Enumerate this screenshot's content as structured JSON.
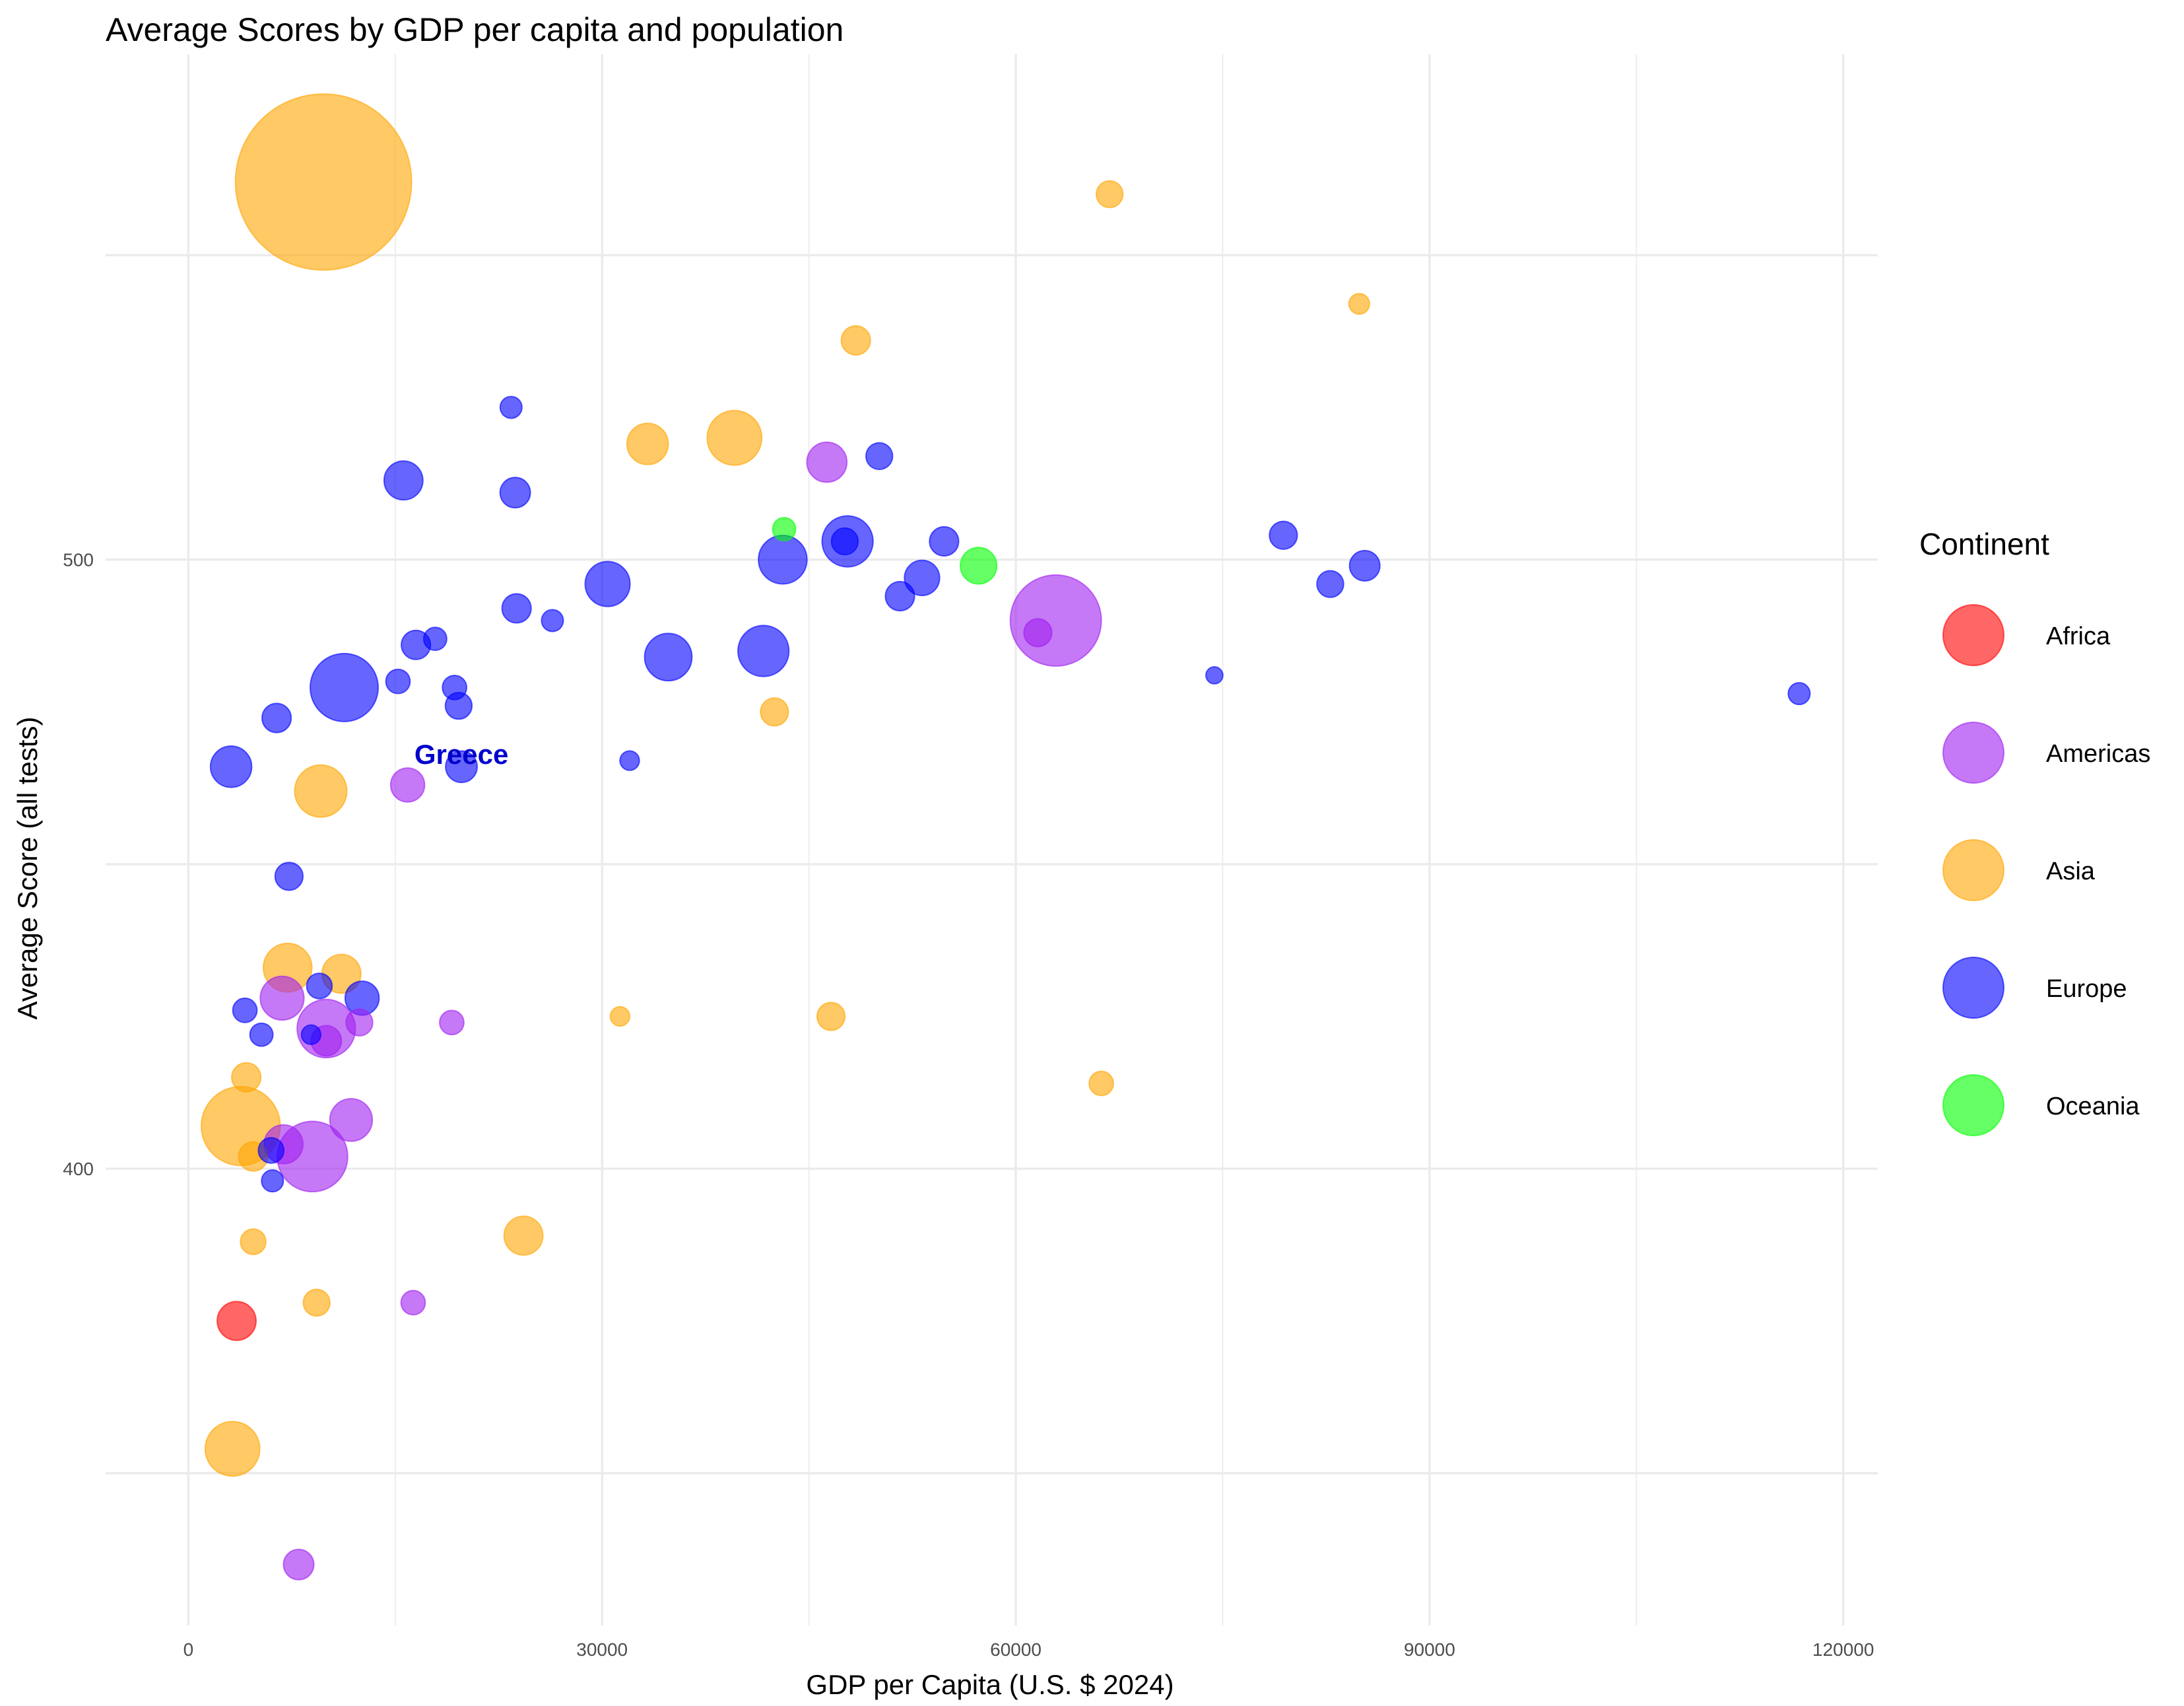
{
  "chart_data": {
    "type": "scatter",
    "title": "Average Scores by GDP per capita and population",
    "xlabel": "GDP per Capita (U.S. $ 2024)",
    "ylabel": "Average Score (all tests)",
    "xlim": [
      -6000,
      122500
    ],
    "ylim": [
      325,
      583
    ],
    "x_ticks": [
      0,
      30000,
      60000,
      90000,
      120000
    ],
    "y_ticks": [
      400,
      500
    ],
    "y_minor_ticks": [
      350,
      450,
      550
    ],
    "grid": true,
    "legend": {
      "title": "Continent",
      "position": "right",
      "entries": [
        {
          "name": "Africa",
          "color": "#ff0000"
        },
        {
          "name": "Americas",
          "color": "#a020f0"
        },
        {
          "name": "Asia",
          "color": "#ffa500"
        },
        {
          "name": "Europe",
          "color": "#0000ff"
        },
        {
          "name": "Oceania",
          "color": "#00ff00"
        }
      ]
    },
    "size_encoding": "population",
    "annotations": [
      {
        "text": "Greece",
        "x": 19800,
        "y": 468,
        "color": "#0000cd"
      }
    ],
    "series": [
      {
        "name": "Africa",
        "color": "#ff0000",
        "points": [
          {
            "x": 3500,
            "y": 375,
            "size": 3.2
          }
        ]
      },
      {
        "name": "Americas",
        "color": "#a020f0",
        "points": [
          {
            "x": 8000,
            "y": 335,
            "size": 2.5
          },
          {
            "x": 16300,
            "y": 378,
            "size": 2.0
          },
          {
            "x": 9000,
            "y": 402,
            "size": 5.8
          },
          {
            "x": 6900,
            "y": 404,
            "size": 3.2
          },
          {
            "x": 11800,
            "y": 408,
            "size": 3.5
          },
          {
            "x": 10000,
            "y": 423,
            "size": 4.8
          },
          {
            "x": 12400,
            "y": 424,
            "size": 2.2
          },
          {
            "x": 6800,
            "y": 428,
            "size": 3.6
          },
          {
            "x": 10000,
            "y": 421,
            "size": 2.5
          },
          {
            "x": 19100,
            "y": 424,
            "size": 2.0
          },
          {
            "x": 15900,
            "y": 463,
            "size": 2.8
          },
          {
            "x": 61600,
            "y": 488,
            "size": 2.3
          },
          {
            "x": 62900,
            "y": 490,
            "size": 7.5
          },
          {
            "x": 46300,
            "y": 516,
            "size": 3.3
          }
        ]
      },
      {
        "name": "Asia",
        "color": "#ffa500",
        "points": [
          {
            "x": 9800,
            "y": 562,
            "size": 14.5
          },
          {
            "x": 66800,
            "y": 560,
            "size": 2.2
          },
          {
            "x": 84900,
            "y": 542,
            "size": 1.7
          },
          {
            "x": 48400,
            "y": 536,
            "size": 2.4
          },
          {
            "x": 33300,
            "y": 519,
            "size": 3.4
          },
          {
            "x": 39600,
            "y": 520,
            "size": 4.5
          },
          {
            "x": 42500,
            "y": 475,
            "size": 2.3
          },
          {
            "x": 9600,
            "y": 462,
            "size": 4.3
          },
          {
            "x": 7200,
            "y": 433,
            "size": 4.0
          },
          {
            "x": 11100,
            "y": 432,
            "size": 3.2
          },
          {
            "x": 31300,
            "y": 425,
            "size": 1.6
          },
          {
            "x": 46600,
            "y": 425,
            "size": 2.3
          },
          {
            "x": 66200,
            "y": 414,
            "size": 2.0
          },
          {
            "x": 4200,
            "y": 415,
            "size": 2.4
          },
          {
            "x": 3800,
            "y": 407,
            "size": 6.5
          },
          {
            "x": 4700,
            "y": 402,
            "size": 2.4
          },
          {
            "x": 4700,
            "y": 388,
            "size": 2.1
          },
          {
            "x": 24300,
            "y": 389,
            "size": 3.2
          },
          {
            "x": 9300,
            "y": 378,
            "size": 2.2
          },
          {
            "x": 3200,
            "y": 354,
            "size": 4.5
          }
        ]
      },
      {
        "name": "Europe",
        "color": "#0000ff",
        "points": [
          {
            "x": 23400,
            "y": 525,
            "size": 1.8
          },
          {
            "x": 15600,
            "y": 513,
            "size": 3.2
          },
          {
            "x": 23700,
            "y": 511,
            "size": 2.5
          },
          {
            "x": 50100,
            "y": 517,
            "size": 2.2
          },
          {
            "x": 79400,
            "y": 504,
            "size": 2.3
          },
          {
            "x": 47800,
            "y": 503,
            "size": 4.2
          },
          {
            "x": 47600,
            "y": 503,
            "size": 2.2
          },
          {
            "x": 54800,
            "y": 503,
            "size": 2.4
          },
          {
            "x": 43100,
            "y": 500,
            "size": 4.0
          },
          {
            "x": 85300,
            "y": 499,
            "size": 2.5
          },
          {
            "x": 30400,
            "y": 496,
            "size": 3.7
          },
          {
            "x": 53200,
            "y": 497,
            "size": 2.9
          },
          {
            "x": 51600,
            "y": 494,
            "size": 2.4
          },
          {
            "x": 82800,
            "y": 496,
            "size": 2.2
          },
          {
            "x": 23800,
            "y": 492,
            "size": 2.4
          },
          {
            "x": 26400,
            "y": 490,
            "size": 1.8
          },
          {
            "x": 16500,
            "y": 486,
            "size": 2.4
          },
          {
            "x": 17900,
            "y": 487,
            "size": 1.9
          },
          {
            "x": 34800,
            "y": 484,
            "size": 3.9
          },
          {
            "x": 41700,
            "y": 485,
            "size": 4.2
          },
          {
            "x": 11300,
            "y": 479,
            "size": 5.6
          },
          {
            "x": 15200,
            "y": 480,
            "size": 2.0
          },
          {
            "x": 19300,
            "y": 479,
            "size": 2.0
          },
          {
            "x": 19600,
            "y": 476,
            "size": 2.2
          },
          {
            "x": 74400,
            "y": 481,
            "size": 1.4
          },
          {
            "x": 116800,
            "y": 478,
            "size": 1.8
          },
          {
            "x": 6400,
            "y": 474,
            "size": 2.4
          },
          {
            "x": 3100,
            "y": 466,
            "size": 3.4
          },
          {
            "x": 19800,
            "y": 466,
            "size": 2.6
          },
          {
            "x": 32000,
            "y": 467,
            "size": 1.6
          },
          {
            "x": 7300,
            "y": 448,
            "size": 2.3
          },
          {
            "x": 9500,
            "y": 430,
            "size": 2.1
          },
          {
            "x": 12600,
            "y": 428,
            "size": 2.8
          },
          {
            "x": 4100,
            "y": 426,
            "size": 2.0
          },
          {
            "x": 5300,
            "y": 422,
            "size": 1.9
          },
          {
            "x": 8900,
            "y": 422,
            "size": 1.6
          },
          {
            "x": 6000,
            "y": 403,
            "size": 2.1
          },
          {
            "x": 6100,
            "y": 398,
            "size": 1.8
          }
        ]
      },
      {
        "name": "Oceania",
        "color": "#00ff00",
        "points": [
          {
            "x": 43200,
            "y": 505,
            "size": 1.9
          },
          {
            "x": 57300,
            "y": 499,
            "size": 3.0
          }
        ]
      }
    ]
  }
}
